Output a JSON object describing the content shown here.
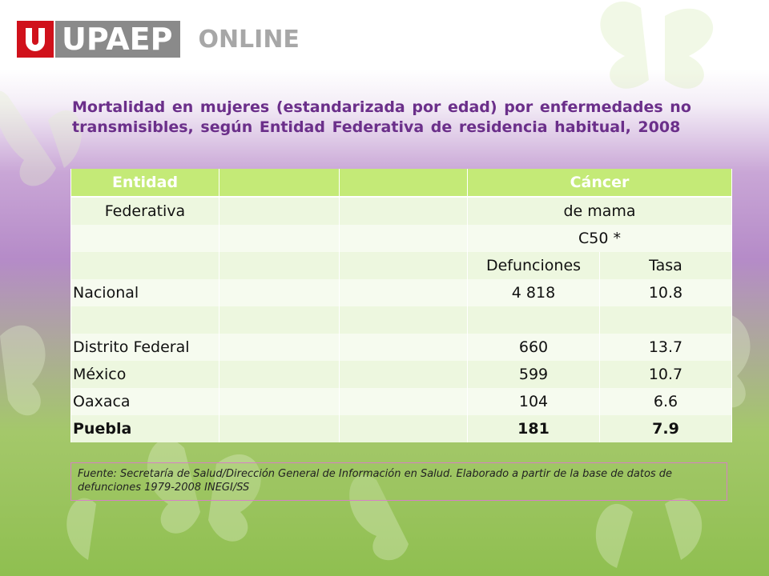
{
  "logo": {
    "brand": "UPAEP",
    "suffix": "ONLINE",
    "colors": {
      "red": "#d0111b",
      "gray": "#8a8a8a"
    }
  },
  "title": "Mortalidad en mujeres (estandarizada por edad) por enfermedades no transmisibles, según Entidad Federativa de residencia habitual, 2008",
  "table": {
    "header": {
      "entidad": "Entidad",
      "cancer": "Cáncer"
    },
    "sub1": {
      "entidad": "Federativa",
      "cancer": "de mama"
    },
    "sub2": {
      "code": "C50 *"
    },
    "sub3": {
      "defunciones": "Defunciones",
      "tasa": "Tasa"
    },
    "rows": [
      {
        "entidad": "Nacional",
        "defunciones": "4 818",
        "tasa": "10.8"
      },
      {
        "entidad": "Distrito Federal",
        "defunciones": "660",
        "tasa": "13.7"
      },
      {
        "entidad": "México",
        "defunciones": "599",
        "tasa": "10.7"
      },
      {
        "entidad": "Oaxaca",
        "defunciones": "104",
        "tasa": "6.6"
      },
      {
        "entidad": "Puebla",
        "defunciones": "181",
        "tasa": "7.9"
      }
    ]
  },
  "source": "Fuente: Secretaría de Salud/Dirección General de Información en Salud. Elaborado a partir de la base de datos de defunciones 1979-2008 INEGI/SS"
}
